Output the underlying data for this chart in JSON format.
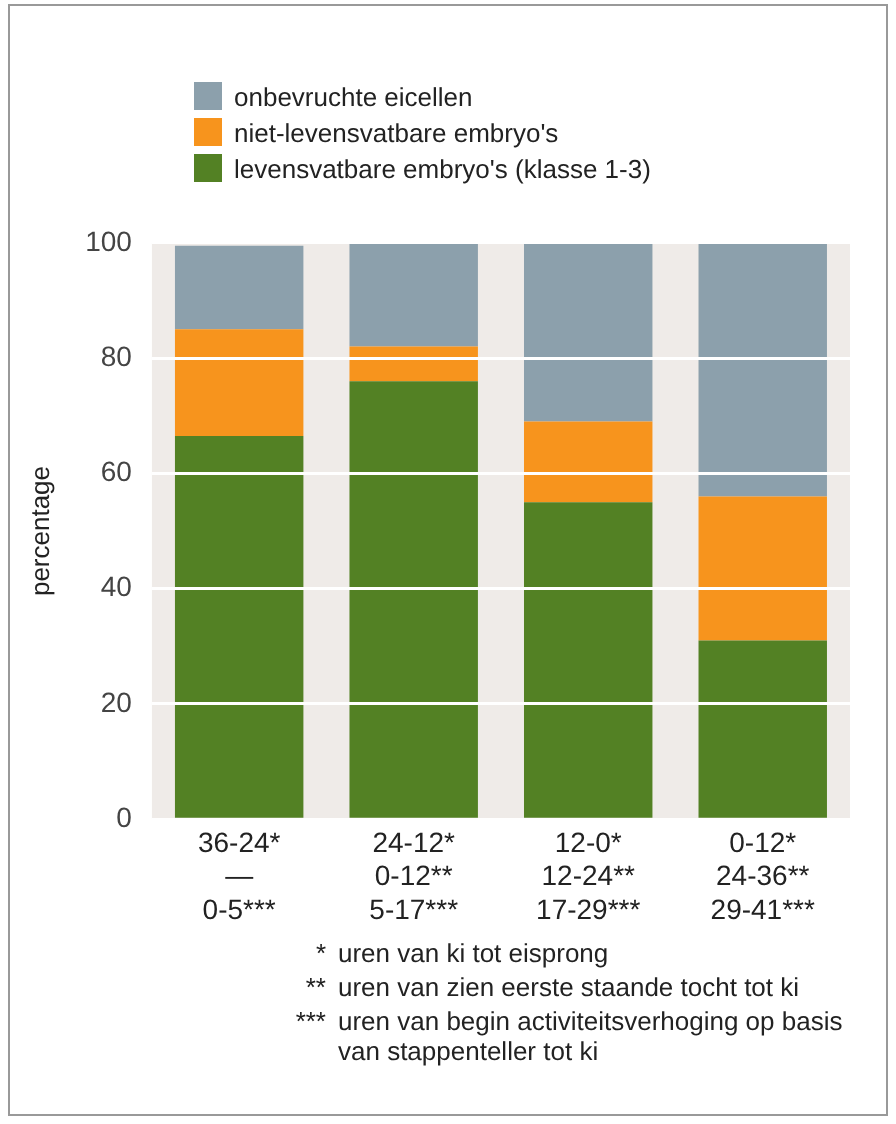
{
  "chart_data": {
    "type": "bar",
    "stacked": true,
    "ylabel": "percentage",
    "categories": [
      "36-24*\n—\n0-5***",
      "24-12*\n0-12**\n5-17***",
      "12-0*\n12-24**\n17-29***",
      "0-12*\n24-36**\n29-41***"
    ],
    "series": [
      {
        "name": "levensvatbare embryo's (klasse 1-3)",
        "color": "#538124",
        "values": [
          66.5,
          76,
          55,
          31
        ]
      },
      {
        "name": "niet-levensvatbare embryo's",
        "color": "#f7941d",
        "values": [
          18.5,
          6,
          14,
          25
        ]
      },
      {
        "name": "onbevruchte eicellen",
        "color": "#8ca0ac",
        "values": [
          14.5,
          18,
          31,
          44
        ]
      }
    ],
    "ylim": [
      0,
      100
    ],
    "yticks": [
      0,
      20,
      40,
      60,
      80,
      100
    ],
    "grid": "y",
    "legend": "top left",
    "annotations": [
      "* uren van ki tot eisprong",
      "** uren van zien eerste staande tocht tot ki",
      "*** uren van begin activiteitsverhoging op basis van stappenteller tot ki"
    ]
  }
}
